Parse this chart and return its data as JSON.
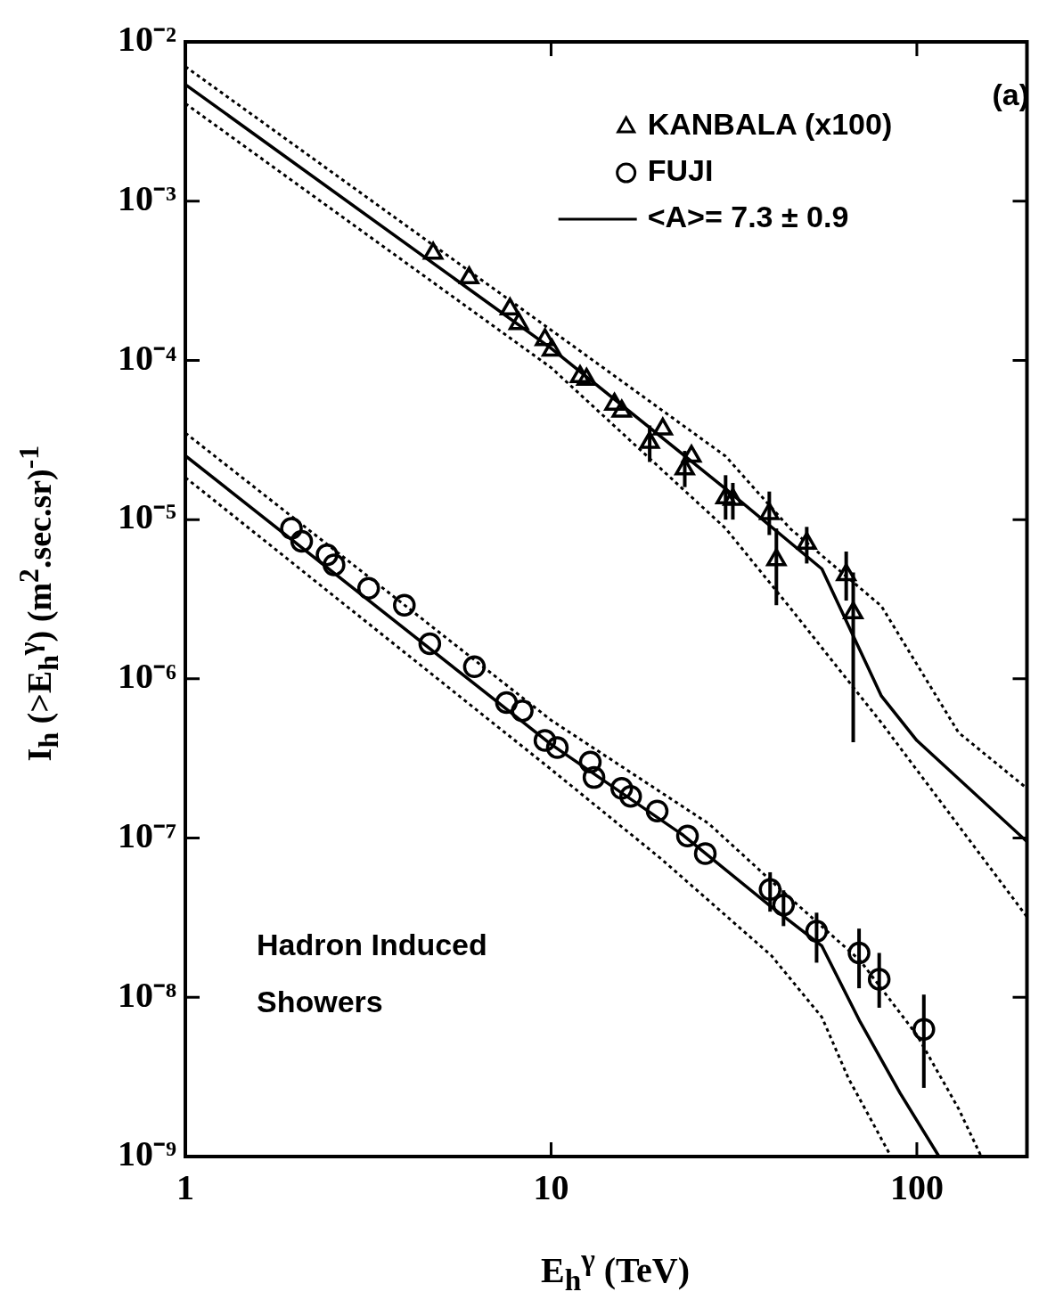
{
  "chart_data": {
    "type": "scatter",
    "xlabel": "E$_{h}$$^{γ}$ (TeV)",
    "ylabel": "I$_{h}$ (>E$_{h}$$^{γ}$)  (m$^{2}$.sec.sr)$^{-1}$",
    "log": "xy",
    "grid": false,
    "legend": "top right",
    "xlim": [
      1,
      200
    ],
    "xticks": [
      1,
      10,
      100
    ],
    "ylim": [
      1e-09,
      0.01
    ],
    "yticks": [
      {
        "value": 0.01,
        "label": "10⁻²"
      },
      {
        "value": 0.001,
        "label": "10⁻³"
      },
      {
        "value": 0.0001,
        "label": "10⁻⁴"
      },
      {
        "value": 1e-05,
        "label": "10⁻⁵"
      },
      {
        "value": 1e-06,
        "label": "10⁻⁶"
      },
      {
        "value": 1e-07,
        "label": "10⁻⁷"
      },
      {
        "value": 1e-08,
        "label": "10⁻⁸"
      },
      {
        "value": 1e-09,
        "label": "10⁻⁹"
      }
    ],
    "annotations": [
      "(a)",
      "Hadron Induced Showers"
    ],
    "series": [
      {
        "name": "KANBALA (x100)",
        "color": "#000000",
        "marker": "triangle",
        "x": [
          4.76,
          5.97,
          7.72,
          8.16,
          9.62,
          10.05,
          12.0,
          12.5,
          14.9,
          15.6,
          18.6,
          20.2,
          23.2,
          24.2,
          30.0,
          31.4,
          39.5,
          41.3,
          50.0,
          64.1,
          67.0
        ],
        "values": [
          0.00047,
          0.00033,
          0.00021,
          0.00017,
          0.000135,
          0.000116,
          7.9e-05,
          7.6e-05,
          5.3e-05,
          4.8e-05,
          3.05e-05,
          3.7e-05,
          2.08e-05,
          2.5e-05,
          1.37e-05,
          1.34e-05,
          1.09e-05,
          5.6e-06,
          7.1e-06,
          4.5e-06,
          2.6e-06
        ],
        "errors": [
          null,
          null,
          null,
          null,
          null,
          null,
          null,
          null,
          null,
          null,
          [
            2.3e-05,
            3.9e-05
          ],
          null,
          [
            1.6e-05,
            2.7e-05
          ],
          null,
          [
            1e-05,
            1.9e-05
          ],
          [
            1e-05,
            1.7e-05
          ],
          [
            8e-06,
            1.5e-05
          ],
          [
            2.9e-06,
            8.8e-06
          ],
          [
            5.3e-06,
            9e-06
          ],
          [
            3.1e-06,
            6.3e-06
          ],
          [
            4e-07,
            4.65e-06
          ]
        ]
      },
      {
        "name": "FUJI",
        "color": "#000000",
        "marker": "circle",
        "x": [
          1.95,
          2.08,
          2.44,
          2.55,
          3.17,
          3.97,
          4.66,
          6.17,
          7.55,
          8.34,
          9.62,
          10.4,
          12.8,
          13.1,
          15.6,
          16.5,
          19.5,
          23.6,
          26.4,
          39.7,
          43.2,
          53.2,
          69.5,
          78.9,
          104.5
        ],
        "values": [
          8.8e-06,
          7.3e-06,
          6e-06,
          5.2e-06,
          3.7e-06,
          2.9e-06,
          1.66e-06,
          1.19e-06,
          7.1e-07,
          6.3e-07,
          4.1e-07,
          3.7e-07,
          3e-07,
          2.4e-07,
          2.05e-07,
          1.83e-07,
          1.48e-07,
          1.03e-07,
          8e-08,
          4.75e-08,
          3.8e-08,
          2.6e-08,
          1.9e-08,
          1.3e-08,
          6.3e-09
        ],
        "errors": [
          null,
          null,
          null,
          null,
          null,
          null,
          null,
          null,
          null,
          null,
          null,
          null,
          null,
          null,
          null,
          null,
          null,
          null,
          null,
          [
            3.45e-08,
            6.1e-08
          ],
          [
            2.8e-08,
            4.7e-08
          ],
          [
            1.65e-08,
            3.4e-08
          ],
          [
            1.14e-08,
            2.7e-08
          ],
          [
            8.6e-09,
            1.9e-08
          ],
          [
            2.7e-09,
            1.04e-08
          ]
        ]
      },
      {
        "type": "line",
        "name": "<A>= 7.3 ± 0.9",
        "color": "#000000",
        "marker": "none",
        "line_style": "solid",
        "x": [
          1,
          10,
          30,
          55,
          80,
          100,
          200
        ],
        "values": [
          0.0054,
          0.000119,
          1.56e-05,
          4.9e-06,
          7.8e-07,
          4.1e-07,
          9.5e-08
        ]
      },
      {
        "type": "line",
        "color": "#000000",
        "marker": "none",
        "line_style": "dotted",
        "x": [
          1,
          10,
          30,
          45,
          80,
          130,
          200
        ],
        "values": [
          0.007,
          0.000155,
          2.5e-05,
          8.8e-06,
          2.86e-06,
          4.6e-07,
          2.05e-07
        ]
      },
      {
        "type": "line",
        "color": "#000000",
        "marker": "none",
        "line_style": "dotted",
        "x": [
          1,
          10,
          30,
          45,
          80,
          200
        ],
        "values": [
          0.0041,
          9e-05,
          8.8e-06,
          2.8e-06,
          5.3e-07,
          3.2e-08
        ]
      },
      {
        "type": "line",
        "color": "#000000",
        "marker": "none",
        "line_style": "solid",
        "x": [
          1,
          10,
          23,
          40,
          55,
          70,
          90,
          115
        ],
        "values": [
          2.52e-05,
          3.88e-07,
          1.04e-07,
          3.7e-08,
          2.1e-08,
          7e-09,
          2.5e-09,
          1e-09
        ]
      },
      {
        "type": "line",
        "color": "#000000",
        "marker": "none",
        "line_style": "dotted",
        "x": [
          1,
          10,
          27,
          45,
          70,
          100,
          130,
          150
        ],
        "values": [
          3.5e-05,
          5.5e-07,
          1.23e-07,
          4.2e-08,
          1.7e-08,
          5.8e-09,
          2e-09,
          1e-09
        ]
      },
      {
        "type": "line",
        "color": "#000000",
        "marker": "none",
        "line_style": "dotted",
        "x": [
          1,
          10,
          20,
          40,
          55,
          65,
          85
        ],
        "values": [
          1.84e-05,
          2.7e-07,
          7.4e-08,
          1.83e-08,
          7.5e-09,
          3.1e-09,
          1e-09
        ]
      }
    ]
  }
}
